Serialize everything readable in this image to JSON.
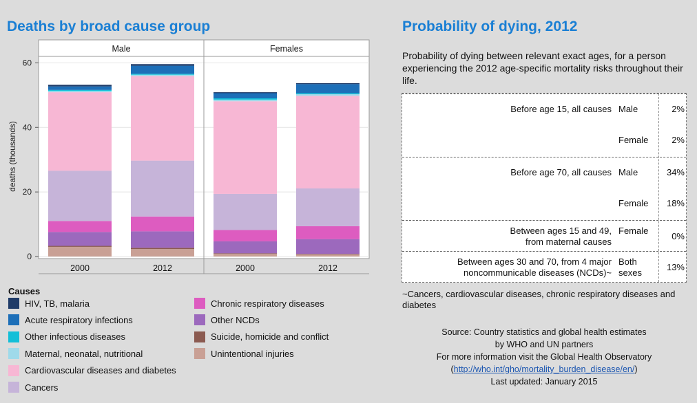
{
  "left_title": "Deaths by broad cause group",
  "right_title": "Probability of dying, 2012",
  "chart_data": {
    "type": "bar",
    "stacked": true,
    "ylabel": "deaths (thousands)",
    "ylim": [
      0,
      62
    ],
    "yticks": [
      0,
      20,
      40,
      60
    ],
    "grid": true,
    "panels": [
      "Male",
      "Females"
    ],
    "categories": [
      "2000",
      "2012"
    ],
    "series": [
      {
        "name": "Unintentional injuries",
        "color": "#c9a095",
        "values": {
          "Male": [
            3.0,
            2.3
          ],
          "Females": [
            0.8,
            0.6
          ]
        }
      },
      {
        "name": "Suicide, homicide and conflict",
        "color": "#8b5a50",
        "values": {
          "Male": [
            0.3,
            0.4
          ],
          "Females": [
            0.2,
            0.2
          ]
        }
      },
      {
        "name": "Other NCDs",
        "color": "#9c69bd",
        "values": {
          "Male": [
            4.3,
            5.1
          ],
          "Females": [
            3.7,
            4.6
          ]
        }
      },
      {
        "name": "Chronic respiratory diseases",
        "color": "#dd5cc0",
        "values": {
          "Male": [
            3.4,
            4.6
          ],
          "Females": [
            3.5,
            4.0
          ]
        }
      },
      {
        "name": "Cancers",
        "color": "#c6b4d9",
        "values": {
          "Male": [
            15.6,
            17.3
          ],
          "Females": [
            11.2,
            11.7
          ]
        }
      },
      {
        "name": "Cardiovascular diseases and diabetes",
        "color": "#f7b7d4",
        "values": {
          "Male": [
            24.3,
            26.2
          ],
          "Females": [
            28.7,
            28.7
          ]
        }
      },
      {
        "name": "Maternal, neonatal, nutritional",
        "color": "#9fdaea",
        "values": {
          "Male": [
            0.4,
            0.4
          ],
          "Females": [
            0.5,
            0.5
          ]
        }
      },
      {
        "name": "Other infectious diseases",
        "color": "#13bfd8",
        "values": {
          "Male": [
            0.3,
            0.3
          ],
          "Females": [
            0.4,
            0.3
          ]
        }
      },
      {
        "name": "Acute respiratory infections",
        "color": "#1d6fb8",
        "values": {
          "Male": [
            1.1,
            2.5
          ],
          "Females": [
            1.6,
            2.8
          ]
        }
      },
      {
        "name": "HIV, TB, malaria",
        "color": "#1f3b68",
        "values": {
          "Male": [
            0.5,
            0.5
          ],
          "Females": [
            0.3,
            0.3
          ]
        }
      }
    ]
  },
  "legend": {
    "title": "Causes",
    "items": [
      {
        "label": "HIV, TB, malaria",
        "color": "#1f3b68"
      },
      {
        "label": "Acute respiratory infections",
        "color": "#1d6fb8"
      },
      {
        "label": "Other infectious diseases",
        "color": "#13bfd8"
      },
      {
        "label": "Maternal, neonatal, nutritional",
        "color": "#9fdaea"
      },
      {
        "label": "Cardiovascular diseases and diabetes",
        "color": "#f7b7d4"
      },
      {
        "label": "Cancers",
        "color": "#c6b4d9"
      },
      {
        "label": "Chronic respiratory diseases",
        "color": "#dd5cc0"
      },
      {
        "label": "Other NCDs",
        "color": "#9c69bd"
      },
      {
        "label": "Suicide, homicide and conflict",
        "color": "#8b5a50"
      },
      {
        "label": "Unintentional injuries",
        "color": "#c9a095"
      }
    ]
  },
  "probability": {
    "intro": "Probability of dying between relevant exact ages, for a person experiencing the 2012 age-specific mortality risks throughout their life.",
    "rows": [
      {
        "desc": [
          "Before age 15, all causes"
        ],
        "sex": [
          "Male"
        ],
        "value": "2%"
      },
      {
        "desc": [],
        "sex": [
          "Female"
        ],
        "value": "2%"
      },
      {
        "desc": [
          "Before age 70, all causes"
        ],
        "sex": [
          "Male"
        ],
        "value": "34%"
      },
      {
        "desc": [],
        "sex": [
          "Female"
        ],
        "value": "18%"
      },
      {
        "desc": [
          "Between ages 15 and 49,",
          "from maternal causes"
        ],
        "sex": [
          "Female"
        ],
        "value": "0%"
      },
      {
        "desc": [
          "Between ages 30 and 70, from 4 major",
          "noncommunicable diseases (NCDs)~"
        ],
        "sex": [
          "Both",
          "sexes"
        ],
        "value": "13%"
      }
    ],
    "footnote": "~Cancers, cardiovascular diseases, chronic respiratory diseases and diabetes"
  },
  "source": {
    "line1": "Source:  Country statistics and global health estimates",
    "line2": "by WHO and UN partners",
    "line3": "For more information visit the Global Health Observatory",
    "link_open": "(",
    "link": "http://who.int/gho/mortality_burden_disease/en/",
    "link_close": ")",
    "updated": "Last updated: January 2015"
  }
}
